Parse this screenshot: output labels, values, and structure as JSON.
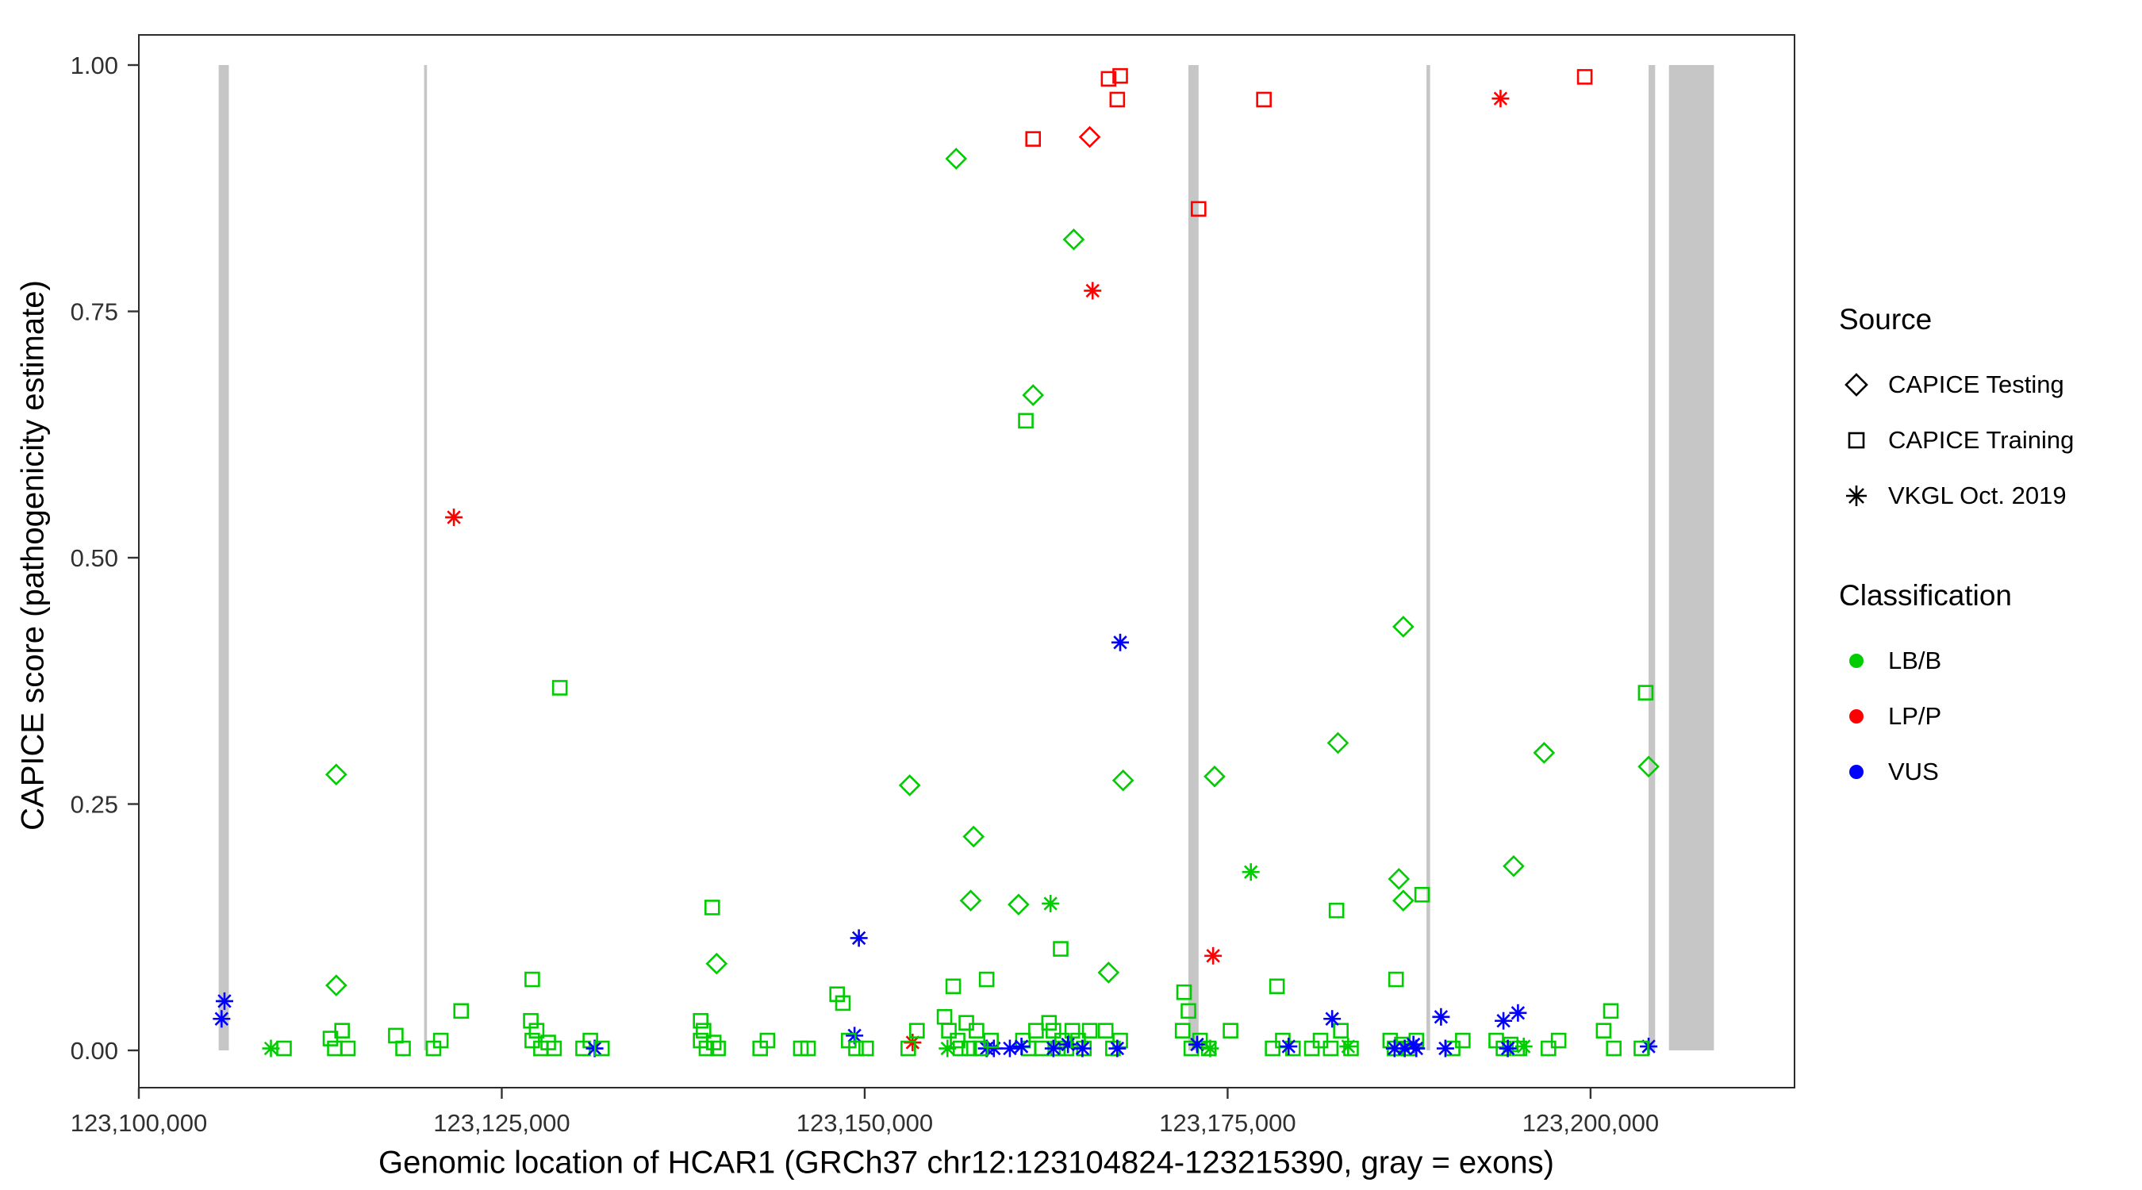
{
  "chart_data": {
    "type": "scatter",
    "title": "",
    "xlabel": "Genomic location of HCAR1 (GRCh37 chr12:123104824-123215390, gray = exons)",
    "ylabel": "CAPICE score (pathogenicity estimate)",
    "xlim": [
      123100000,
      123214050
    ],
    "ylim": [
      0.0,
      1.0
    ],
    "grid": false,
    "legend_position": "right",
    "x_ticks": [
      {
        "value": 123100000,
        "label": "123,100,000"
      },
      {
        "value": 123125000,
        "label": "123,125,000"
      },
      {
        "value": 123150000,
        "label": "123,150,000"
      },
      {
        "value": 123175000,
        "label": "123,175,000"
      },
      {
        "value": 123200000,
        "label": "123,200,000"
      }
    ],
    "y_ticks": [
      {
        "value": 0.0,
        "label": "0.00"
      },
      {
        "value": 0.25,
        "label": "0.25"
      },
      {
        "value": 0.5,
        "label": "0.50"
      },
      {
        "value": 0.75,
        "label": "0.75"
      },
      {
        "value": 1.0,
        "label": "1.00"
      }
    ],
    "exons": [
      [
        123105500,
        123106200
      ],
      [
        123119650,
        123119850
      ],
      [
        123172300,
        123173000
      ],
      [
        123188700,
        123188950
      ],
      [
        123204000,
        123204450
      ],
      [
        123205400,
        123208500
      ]
    ],
    "points": [
      [
        123105900,
        0.05,
        "vkgl",
        "VUS"
      ],
      [
        123105700,
        0.032,
        "vkgl",
        "VUS"
      ],
      [
        123109100,
        0.002,
        "vkgl",
        "LB/B"
      ],
      [
        123110000,
        0.002,
        "training",
        "LB/B"
      ],
      [
        123113600,
        0.28,
        "testing",
        "LB/B"
      ],
      [
        123113600,
        0.066,
        "testing",
        "LB/B"
      ],
      [
        123113200,
        0.012,
        "training",
        "LB/B"
      ],
      [
        123113500,
        0.002,
        "training",
        "LB/B"
      ],
      [
        123114000,
        0.02,
        "training",
        "LB/B"
      ],
      [
        123114400,
        0.002,
        "training",
        "LB/B"
      ],
      [
        123117700,
        0.015,
        "training",
        "LB/B"
      ],
      [
        123118200,
        0.002,
        "training",
        "LB/B"
      ],
      [
        123120300,
        0.002,
        "training",
        "LB/B"
      ],
      [
        123120800,
        0.01,
        "training",
        "LB/B"
      ],
      [
        123121700,
        0.541,
        "vkgl",
        "LP/P"
      ],
      [
        123122200,
        0.04,
        "training",
        "LB/B"
      ],
      [
        123127100,
        0.072,
        "training",
        "LB/B"
      ],
      [
        123127000,
        0.03,
        "training",
        "LB/B"
      ],
      [
        123127400,
        0.02,
        "training",
        "LB/B"
      ],
      [
        123127100,
        0.01,
        "training",
        "LB/B"
      ],
      [
        123127700,
        0.002,
        "training",
        "LB/B"
      ],
      [
        123128200,
        0.008,
        "training",
        "LB/B"
      ],
      [
        123128600,
        0.002,
        "training",
        "LB/B"
      ],
      [
        123129000,
        0.368,
        "training",
        "LB/B"
      ],
      [
        123130600,
        0.002,
        "training",
        "LB/B"
      ],
      [
        123131100,
        0.01,
        "training",
        "LB/B"
      ],
      [
        123131400,
        0.002,
        "vkgl",
        "VUS"
      ],
      [
        123131900,
        0.002,
        "training",
        "LB/B"
      ],
      [
        123139500,
        0.145,
        "training",
        "LB/B"
      ],
      [
        123139800,
        0.088,
        "testing",
        "LB/B"
      ],
      [
        123138700,
        0.03,
        "training",
        "LB/B"
      ],
      [
        123138900,
        0.02,
        "training",
        "LB/B"
      ],
      [
        123138700,
        0.01,
        "training",
        "LB/B"
      ],
      [
        123139100,
        0.002,
        "training",
        "LB/B"
      ],
      [
        123139600,
        0.008,
        "training",
        "LB/B"
      ],
      [
        123139900,
        0.002,
        "training",
        "LB/B"
      ],
      [
        123142800,
        0.002,
        "training",
        "LB/B"
      ],
      [
        123143300,
        0.01,
        "training",
        "LB/B"
      ],
      [
        123145600,
        0.002,
        "training",
        "LB/B"
      ],
      [
        123146100,
        0.002,
        "training",
        "LB/B"
      ],
      [
        123148100,
        0.057,
        "training",
        "LB/B"
      ],
      [
        123148500,
        0.048,
        "training",
        "LB/B"
      ],
      [
        123149600,
        0.114,
        "vkgl",
        "VUS"
      ],
      [
        123149300,
        0.015,
        "vkgl",
        "VUS"
      ],
      [
        123148900,
        0.01,
        "training",
        "LB/B"
      ],
      [
        123149400,
        0.002,
        "training",
        "LB/B"
      ],
      [
        123150100,
        0.002,
        "training",
        "LB/B"
      ],
      [
        123153100,
        0.269,
        "testing",
        "LB/B"
      ],
      [
        123153300,
        0.008,
        "vkgl",
        "LP/P"
      ],
      [
        123153000,
        0.002,
        "training",
        "LB/B"
      ],
      [
        123153600,
        0.02,
        "training",
        "LB/B"
      ],
      [
        123156300,
        0.905,
        "testing",
        "LB/B"
      ],
      [
        123155500,
        0.034,
        "training",
        "LB/B"
      ],
      [
        123155800,
        0.02,
        "training",
        "LB/B"
      ],
      [
        123156100,
        0.065,
        "training",
        "LB/B"
      ],
      [
        123156400,
        0.01,
        "training",
        "LB/B"
      ],
      [
        123156600,
        0.002,
        "training",
        "LB/B"
      ],
      [
        123157000,
        0.028,
        "training",
        "LB/B"
      ],
      [
        123157200,
        0.002,
        "training",
        "LB/B"
      ],
      [
        123155700,
        0.002,
        "vkgl",
        "LB/B"
      ],
      [
        123157500,
        0.217,
        "testing",
        "LB/B"
      ],
      [
        123157300,
        0.152,
        "testing",
        "LB/B"
      ],
      [
        123158400,
        0.072,
        "training",
        "LB/B"
      ],
      [
        123158400,
        0.002,
        "vkgl",
        "VUS"
      ],
      [
        123158900,
        0.002,
        "vkgl",
        "VUS"
      ],
      [
        123157700,
        0.02,
        "training",
        "LB/B"
      ],
      [
        123158000,
        0.002,
        "training",
        "LB/B"
      ],
      [
        123158700,
        0.01,
        "training",
        "LB/B"
      ],
      [
        123161100,
        0.639,
        "training",
        "LB/B"
      ],
      [
        123161600,
        0.665,
        "testing",
        "LB/B"
      ],
      [
        123161600,
        0.925,
        "training",
        "LP/P"
      ],
      [
        123160600,
        0.148,
        "testing",
        "LB/B"
      ],
      [
        123160900,
        0.01,
        "training",
        "LB/B"
      ],
      [
        123161300,
        0.002,
        "training",
        "LB/B"
      ],
      [
        123161800,
        0.02,
        "training",
        "LB/B"
      ],
      [
        123162200,
        0.002,
        "training",
        "LB/B"
      ],
      [
        123160000,
        0.002,
        "vkgl",
        "VUS"
      ],
      [
        123160800,
        0.004,
        "vkgl",
        "VUS"
      ],
      [
        123162800,
        0.149,
        "vkgl",
        "LB/B"
      ],
      [
        123163500,
        0.103,
        "training",
        "LB/B"
      ],
      [
        123162700,
        0.028,
        "training",
        "LB/B"
      ],
      [
        123163000,
        0.02,
        "training",
        "LB/B"
      ],
      [
        123163300,
        0.002,
        "training",
        "LB/B"
      ],
      [
        123163600,
        0.01,
        "training",
        "LB/B"
      ],
      [
        123163900,
        0.002,
        "training",
        "LB/B"
      ],
      [
        123164300,
        0.02,
        "training",
        "LB/B"
      ],
      [
        123163000,
        0.002,
        "vkgl",
        "VUS"
      ],
      [
        123164000,
        0.006,
        "vkgl",
        "VUS"
      ],
      [
        123164400,
        0.823,
        "testing",
        "LB/B"
      ],
      [
        123165700,
        0.771,
        "vkgl",
        "LP/P"
      ],
      [
        123165500,
        0.927,
        "testing",
        "LP/P"
      ],
      [
        123164700,
        0.01,
        "training",
        "LB/B"
      ],
      [
        123165100,
        0.002,
        "training",
        "LB/B"
      ],
      [
        123165500,
        0.02,
        "training",
        "LB/B"
      ],
      [
        123165000,
        0.002,
        "vkgl",
        "VUS"
      ],
      [
        123166800,
        0.986,
        "training",
        "LP/P"
      ],
      [
        123167600,
        0.989,
        "training",
        "LP/P"
      ],
      [
        123167400,
        0.965,
        "training",
        "LP/P"
      ],
      [
        123166800,
        0.079,
        "testing",
        "LB/B"
      ],
      [
        123167800,
        0.274,
        "testing",
        "LB/B"
      ],
      [
        123166600,
        0.02,
        "training",
        "LB/B"
      ],
      [
        123167100,
        0.002,
        "training",
        "LB/B"
      ],
      [
        123167600,
        0.01,
        "training",
        "LB/B"
      ],
      [
        123167400,
        0.002,
        "vkgl",
        "VUS"
      ],
      [
        123167600,
        0.414,
        "vkgl",
        "VUS"
      ],
      [
        123173000,
        0.854,
        "training",
        "LP/P"
      ],
      [
        123174000,
        0.096,
        "vkgl",
        "LP/P"
      ],
      [
        123174100,
        0.278,
        "testing",
        "LB/B"
      ],
      [
        123172000,
        0.059,
        "training",
        "LB/B"
      ],
      [
        123172300,
        0.04,
        "training",
        "LB/B"
      ],
      [
        123171900,
        0.02,
        "training",
        "LB/B"
      ],
      [
        123172500,
        0.002,
        "training",
        "LB/B"
      ],
      [
        123173100,
        0.01,
        "training",
        "LB/B"
      ],
      [
        123173700,
        0.002,
        "training",
        "LB/B"
      ],
      [
        123172900,
        0.006,
        "vkgl",
        "VUS"
      ],
      [
        123173800,
        0.002,
        "vkgl",
        "LB/B"
      ],
      [
        123175200,
        0.02,
        "training",
        "LB/B"
      ],
      [
        123176600,
        0.181,
        "vkgl",
        "LB/B"
      ],
      [
        123177500,
        0.965,
        "training",
        "LP/P"
      ],
      [
        123178400,
        0.065,
        "training",
        "LB/B"
      ],
      [
        123178100,
        0.002,
        "training",
        "LB/B"
      ],
      [
        123178800,
        0.01,
        "training",
        "LB/B"
      ],
      [
        123179500,
        0.002,
        "training",
        "LB/B"
      ],
      [
        123179200,
        0.004,
        "vkgl",
        "VUS"
      ],
      [
        123182600,
        0.312,
        "testing",
        "LB/B"
      ],
      [
        123182500,
        0.142,
        "training",
        "LB/B"
      ],
      [
        123180800,
        0.002,
        "training",
        "LB/B"
      ],
      [
        123181400,
        0.01,
        "training",
        "LB/B"
      ],
      [
        123182100,
        0.002,
        "training",
        "LB/B"
      ],
      [
        123182800,
        0.02,
        "training",
        "LB/B"
      ],
      [
        123183500,
        0.002,
        "training",
        "LB/B"
      ],
      [
        123182200,
        0.032,
        "vkgl",
        "VUS"
      ],
      [
        123183300,
        0.004,
        "vkgl",
        "LB/B"
      ],
      [
        123187100,
        0.43,
        "testing",
        "LB/B"
      ],
      [
        123186800,
        0.174,
        "testing",
        "LB/B"
      ],
      [
        123187100,
        0.152,
        "testing",
        "LB/B"
      ],
      [
        123188400,
        0.158,
        "training",
        "LB/B"
      ],
      [
        123186600,
        0.072,
        "training",
        "LB/B"
      ],
      [
        123186200,
        0.01,
        "training",
        "LB/B"
      ],
      [
        123186500,
        0.002,
        "training",
        "LB/B"
      ],
      [
        123187000,
        0.006,
        "training",
        "LB/B"
      ],
      [
        123187500,
        0.002,
        "training",
        "LB/B"
      ],
      [
        123188000,
        0.01,
        "training",
        "LB/B"
      ],
      [
        123186500,
        0.002,
        "vkgl",
        "VUS"
      ],
      [
        123187200,
        0.002,
        "vkgl",
        "VUS"
      ],
      [
        123187800,
        0.006,
        "vkgl",
        "VUS"
      ],
      [
        123188000,
        0.002,
        "vkgl",
        "VUS"
      ],
      [
        123189700,
        0.034,
        "vkgl",
        "VUS"
      ],
      [
        123190500,
        0.002,
        "training",
        "LB/B"
      ],
      [
        123191200,
        0.01,
        "training",
        "LB/B"
      ],
      [
        123190000,
        0.002,
        "vkgl",
        "VUS"
      ],
      [
        123193800,
        0.966,
        "vkgl",
        "LP/P"
      ],
      [
        123194700,
        0.187,
        "testing",
        "LB/B"
      ],
      [
        123193500,
        0.01,
        "training",
        "LB/B"
      ],
      [
        123194000,
        0.002,
        "training",
        "LB/B"
      ],
      [
        123194500,
        0.006,
        "training",
        "LB/B"
      ],
      [
        123195100,
        0.002,
        "training",
        "LB/B"
      ],
      [
        123194000,
        0.03,
        "vkgl",
        "VUS"
      ],
      [
        123195000,
        0.038,
        "vkgl",
        "VUS"
      ],
      [
        123194300,
        0.002,
        "vkgl",
        "VUS"
      ],
      [
        123195400,
        0.004,
        "vkgl",
        "LB/B"
      ],
      [
        123196800,
        0.302,
        "testing",
        "LB/B"
      ],
      [
        123197100,
        0.002,
        "training",
        "LB/B"
      ],
      [
        123197800,
        0.01,
        "training",
        "LB/B"
      ],
      [
        123199600,
        0.988,
        "training",
        "LP/P"
      ],
      [
        123200900,
        0.02,
        "training",
        "LB/B"
      ],
      [
        123201400,
        0.04,
        "training",
        "LB/B"
      ],
      [
        123201600,
        0.002,
        "training",
        "LB/B"
      ],
      [
        123203800,
        0.363,
        "training",
        "LB/B"
      ],
      [
        123204000,
        0.288,
        "testing",
        "LB/B"
      ],
      [
        123204000,
        0.004,
        "vkgl",
        "VUS"
      ],
      [
        123203500,
        0.002,
        "training",
        "LB/B"
      ]
    ]
  },
  "legend": {
    "source_title": "Source",
    "source_items": [
      {
        "label": "CAPICE Testing",
        "symbol": "diamond-icon"
      },
      {
        "label": "CAPICE Training",
        "symbol": "square-icon"
      },
      {
        "label": "VKGL Oct. 2019",
        "symbol": "asterisk-icon"
      }
    ],
    "classification_title": "Classification",
    "classification_items": [
      {
        "label": "LB/B",
        "color": "#00CD00"
      },
      {
        "label": "LP/P",
        "color": "#FF0000"
      },
      {
        "label": "VUS",
        "color": "#0000FF"
      }
    ]
  },
  "colors": {
    "LB/B": "#00CD00",
    "LP/P": "#FF0000",
    "VUS": "#0000FF",
    "exon": "#C6C6C6",
    "axis": "#333333",
    "panel_border": "#2b2b2b"
  }
}
